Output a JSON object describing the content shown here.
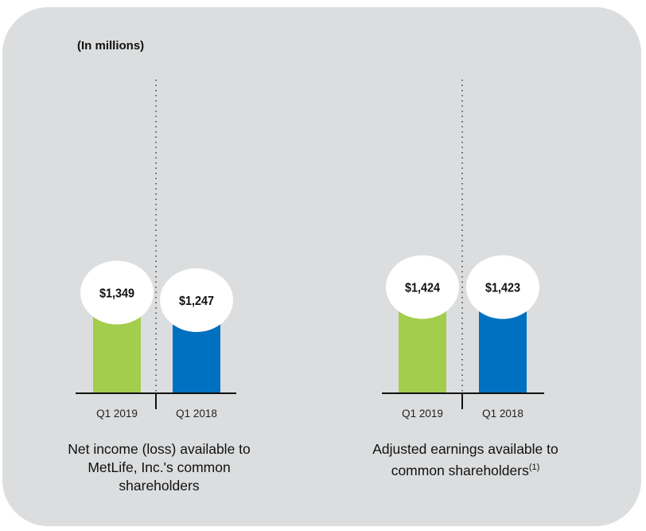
{
  "unit_label": "(In millions)",
  "chart_data": [
    {
      "type": "bar",
      "title": "Net income (loss) available to MetLife, Inc.'s common shareholders",
      "categories": [
        "Q1 2019",
        "Q1 2018"
      ],
      "values": [
        1349,
        1247
      ],
      "data_labels": [
        "$1,349",
        "$1,247"
      ],
      "colors": [
        "#a3cd4c",
        "#0070c0"
      ],
      "grid": false
    },
    {
      "type": "bar",
      "title": "Adjusted earnings available to common shareholders",
      "title_footnote": "(1)",
      "categories": [
        "Q1 2019",
        "Q1 2018"
      ],
      "values": [
        1424,
        1423
      ],
      "data_labels": [
        "$1,424",
        "$1,423"
      ],
      "colors": [
        "#a3cd4c",
        "#0070c0"
      ],
      "grid": false
    }
  ]
}
